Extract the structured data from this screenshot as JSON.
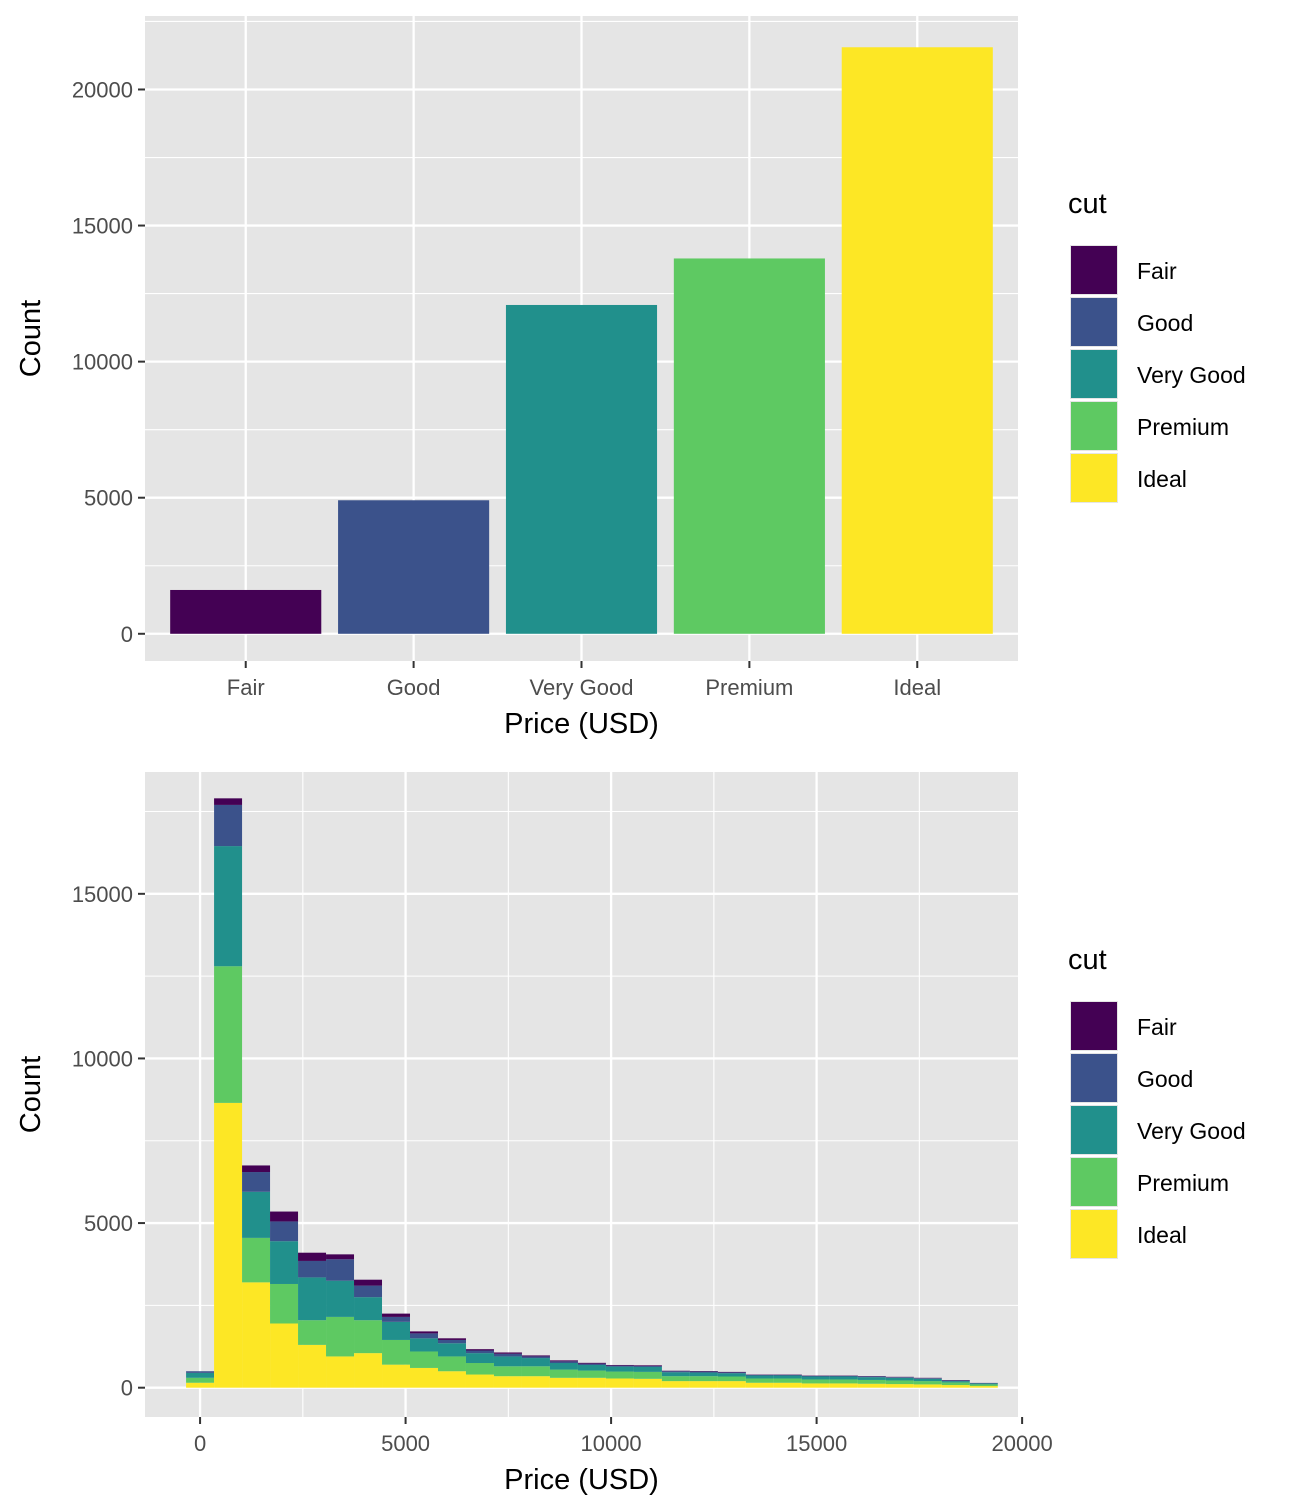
{
  "colors": {
    "panel_background": "#e5e5e5",
    "grid_line": "#ffffff",
    "palette": [
      "#440154",
      "#3b528b",
      "#21908c",
      "#5ec962",
      "#fde725"
    ]
  },
  "chart_data": [
    {
      "type": "bar",
      "categories": [
        "Fair",
        "Good",
        "Very Good",
        "Premium",
        "Ideal"
      ],
      "values": [
        1610,
        4906,
        12082,
        13791,
        21551
      ],
      "xlabel": "Price (USD)",
      "ylabel": "Count",
      "ylim": [
        -1000,
        22700
      ],
      "yticks": [
        0,
        5000,
        10000,
        15000,
        20000
      ],
      "legend": {
        "title": "cut",
        "position": "right",
        "entries": [
          "Fair",
          "Good",
          "Very Good",
          "Premium",
          "Ideal"
        ]
      },
      "grid": true
    },
    {
      "type": "bar",
      "stacked": true,
      "histogram": true,
      "bin_width": 681,
      "x": [
        0,
        681,
        1362,
        2043,
        2724,
        3405,
        4086,
        4767,
        5448,
        6129,
        6810,
        7491,
        8172,
        8853,
        9534,
        10215,
        10896,
        11577,
        12258,
        12939,
        13620,
        14301,
        14982,
        15663,
        16344,
        17025,
        17706,
        18387,
        19068
      ],
      "series": [
        {
          "name": "Fair",
          "values": [
            0,
            200,
            200,
            300,
            250,
            150,
            180,
            100,
            60,
            50,
            40,
            40,
            30,
            30,
            25,
            20,
            20,
            15,
            15,
            15,
            10,
            10,
            10,
            10,
            10,
            10,
            10,
            10,
            5
          ]
        },
        {
          "name": "Good",
          "values": [
            50,
            1250,
            600,
            600,
            500,
            650,
            350,
            150,
            150,
            100,
            80,
            80,
            50,
            50,
            40,
            30,
            30,
            30,
            30,
            25,
            20,
            20,
            20,
            20,
            20,
            20,
            20,
            20,
            10
          ]
        },
        {
          "name": "Very Good",
          "values": [
            150,
            3650,
            1400,
            1300,
            1300,
            1100,
            700,
            550,
            400,
            400,
            300,
            300,
            250,
            200,
            170,
            150,
            150,
            120,
            110,
            100,
            90,
            90,
            90,
            90,
            85,
            80,
            70,
            40,
            30
          ]
        },
        {
          "name": "Premium",
          "values": [
            150,
            4150,
            1350,
            1200,
            750,
            1200,
            1000,
            750,
            500,
            450,
            350,
            300,
            300,
            250,
            220,
            210,
            210,
            150,
            150,
            140,
            130,
            130,
            120,
            120,
            115,
            110,
            100,
            80,
            50
          ]
        },
        {
          "name": "Ideal",
          "values": [
            150,
            8650,
            3200,
            1950,
            1300,
            950,
            1050,
            700,
            600,
            500,
            400,
            350,
            350,
            300,
            300,
            280,
            270,
            200,
            200,
            200,
            150,
            150,
            130,
            130,
            120,
            110,
            100,
            80,
            50
          ]
        }
      ],
      "xlabel": "Price (USD)",
      "ylabel": "Count",
      "xlim": [
        -1340,
        19900
      ],
      "ylim": [
        -890,
        18700
      ],
      "xticks": [
        0,
        5000,
        10000,
        15000,
        20000
      ],
      "yticks": [
        0,
        5000,
        10000,
        15000
      ],
      "legend": {
        "title": "cut",
        "position": "right",
        "entries": [
          "Fair",
          "Good",
          "Very Good",
          "Premium",
          "Ideal"
        ]
      },
      "grid": true
    }
  ]
}
